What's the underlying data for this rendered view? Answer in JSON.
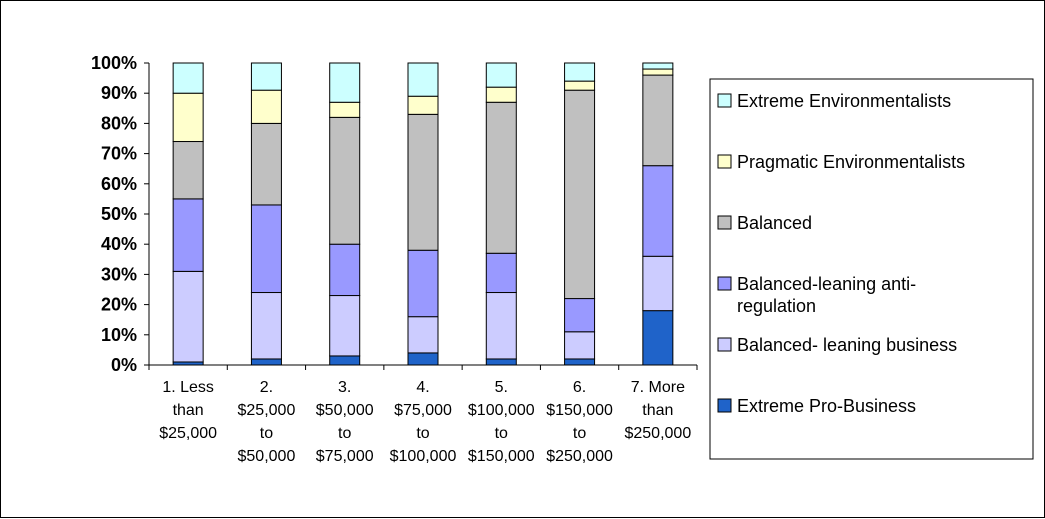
{
  "chart_data": {
    "type": "bar",
    "stacked": true,
    "title": "",
    "xlabel": "",
    "ylabel": "",
    "ylim": [
      0,
      100
    ],
    "yticks": [
      "0%",
      "10%",
      "20%",
      "30%",
      "40%",
      "50%",
      "60%",
      "70%",
      "80%",
      "90%",
      "100%"
    ],
    "grid": false,
    "legend_position": "right",
    "categories": [
      [
        "1.  Less",
        "than",
        "$25,000"
      ],
      [
        "2.",
        "$25,000",
        "to",
        "$50,000"
      ],
      [
        "3.",
        "$50,000",
        "to",
        "$75,000"
      ],
      [
        "4.",
        "$75,000",
        "to",
        "$100,000"
      ],
      [
        "5.",
        "$100,000",
        "to",
        "$150,000"
      ],
      [
        "6.",
        "$150,000",
        "to",
        "$250,000"
      ],
      [
        "7.  More",
        "than",
        "$250,000"
      ]
    ],
    "series": [
      {
        "name": "Extreme Pro-Business",
        "color": "#1f63c9",
        "values": [
          1,
          2,
          3,
          4,
          2,
          2,
          18
        ]
      },
      {
        "name": "Balanced- leaning business",
        "color": "#ccccff",
        "values": [
          30,
          22,
          20,
          12,
          22,
          9,
          18
        ]
      },
      {
        "name": "Balanced-leaning anti-regulation",
        "color": "#9999ff",
        "values": [
          24,
          29,
          17,
          22,
          13,
          11,
          30
        ]
      },
      {
        "name": "Balanced",
        "color": "#c0c0c0",
        "values": [
          19,
          27,
          42,
          45,
          50,
          69,
          30
        ]
      },
      {
        "name": "Pragmatic Environmentalists",
        "color": "#ffffcc",
        "values": [
          16,
          11,
          5,
          6,
          5,
          3,
          2
        ]
      },
      {
        "name": "Extreme Environmentalists",
        "color": "#ccffff",
        "values": [
          10,
          9,
          13,
          11,
          8,
          6,
          2
        ]
      }
    ],
    "legend_order": [
      [
        "Extreme Environmentalists"
      ],
      [
        "Pragmatic Environmentalists"
      ],
      [
        "Balanced"
      ],
      [
        "Balanced-leaning anti-",
        "regulation"
      ],
      [
        "Balanced- leaning business"
      ],
      [
        "Extreme Pro-Business"
      ]
    ]
  }
}
